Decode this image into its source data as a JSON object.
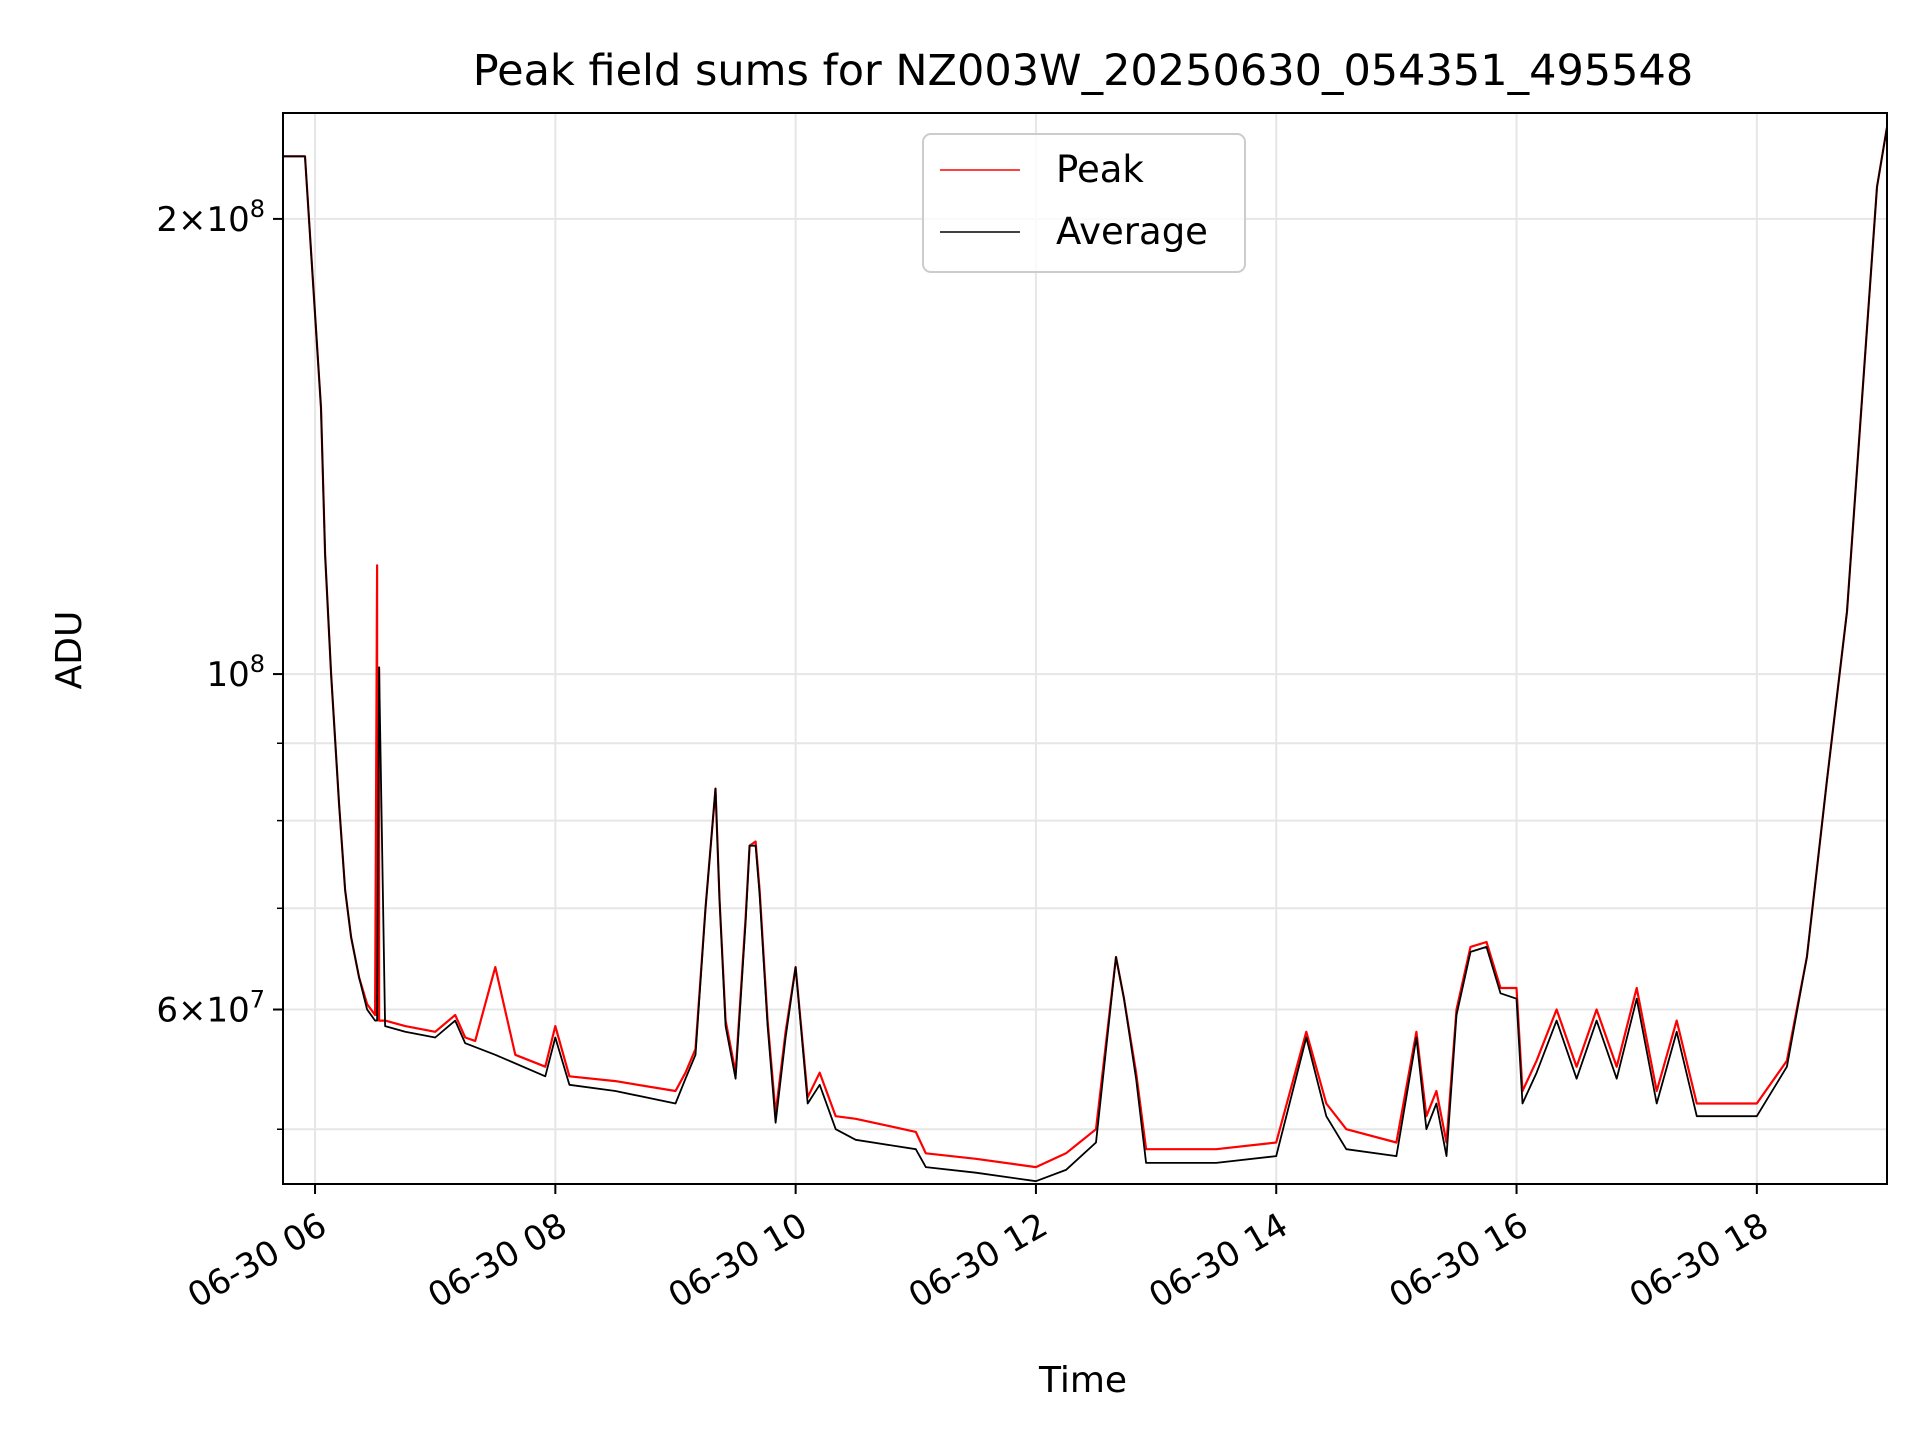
{
  "chart_data": {
    "type": "line",
    "title": "Peak field sums for NZ003W_20250630_054351_495548",
    "xlabel": "Time",
    "ylabel": "ADU",
    "yscale": "log",
    "grid": true,
    "legend_placement": "upper center",
    "xlim": [
      "2025-06-30 05:44",
      "2025-06-30 19:05"
    ],
    "ylim": [
      46000000,
      235000000
    ],
    "x_ticks": [
      "2025-06-30 06:00",
      "2025-06-30 08:00",
      "2025-06-30 10:00",
      "2025-06-30 12:00",
      "2025-06-30 14:00",
      "2025-06-30 16:00",
      "2025-06-30 18:00"
    ],
    "x_tick_labels": [
      "06-30 06",
      "06-30 08",
      "06-30 10",
      "06-30 12",
      "06-30 14",
      "06-30 16",
      "06-30 18"
    ],
    "y_major_ticks": [
      60000000,
      100000000,
      200000000
    ],
    "y_major_tick_labels": [
      {
        "mant": "6",
        "exp": "7"
      },
      {
        "mant": "",
        "exp": "8"
      },
      {
        "mant": "2",
        "exp": "8"
      }
    ],
    "y_minor_ticks": [
      50000000,
      70000000,
      80000000,
      90000000
    ],
    "series": [
      {
        "name": "Peak",
        "color": "#ff0000",
        "x": [
          "2025-06-30 05:44",
          "2025-06-30 05:55",
          "2025-06-30 06:03",
          "2025-06-30 06:05",
          "2025-06-30 06:08",
          "2025-06-30 06:12",
          "2025-06-30 06:15",
          "2025-06-30 06:18",
          "2025-06-30 06:22",
          "2025-06-30 06:26",
          "2025-06-30 06:30",
          "2025-06-30 06:31",
          "2025-06-30 06:31",
          "2025-06-30 06:32",
          "2025-06-30 06:32",
          "2025-06-30 06:35",
          "2025-06-30 06:45",
          "2025-06-30 07:00",
          "2025-06-30 07:10",
          "2025-06-30 07:15",
          "2025-06-30 07:20",
          "2025-06-30 07:30",
          "2025-06-30 07:40",
          "2025-06-30 07:55",
          "2025-06-30 08:00",
          "2025-06-30 08:07",
          "2025-06-30 08:30",
          "2025-06-30 09:00",
          "2025-06-30 09:05",
          "2025-06-30 09:10",
          "2025-06-30 09:15",
          "2025-06-30 09:20",
          "2025-06-30 09:22",
          "2025-06-30 09:25",
          "2025-06-30 09:30",
          "2025-06-30 09:35",
          "2025-06-30 09:37",
          "2025-06-30 09:40",
          "2025-06-30 09:42",
          "2025-06-30 09:46",
          "2025-06-30 09:50",
          "2025-06-30 09:55",
          "2025-06-30 10:00",
          "2025-06-30 10:06",
          "2025-06-30 10:12",
          "2025-06-30 10:20",
          "2025-06-30 10:30",
          "2025-06-30 11:00",
          "2025-06-30 11:05",
          "2025-06-30 11:30",
          "2025-06-30 12:00",
          "2025-06-30 12:15",
          "2025-06-30 12:30",
          "2025-06-30 12:40",
          "2025-06-30 12:44",
          "2025-06-30 12:50",
          "2025-06-30 12:55",
          "2025-06-30 13:00",
          "2025-06-30 13:30",
          "2025-06-30 14:00",
          "2025-06-30 14:15",
          "2025-06-30 14:25",
          "2025-06-30 14:35",
          "2025-06-30 15:00",
          "2025-06-30 15:10",
          "2025-06-30 15:15",
          "2025-06-30 15:20",
          "2025-06-30 15:25",
          "2025-06-30 15:30",
          "2025-06-30 15:37",
          "2025-06-30 15:45",
          "2025-06-30 15:52",
          "2025-06-30 16:00",
          "2025-06-30 16:03",
          "2025-06-30 16:10",
          "2025-06-30 16:20",
          "2025-06-30 16:30",
          "2025-06-30 16:40",
          "2025-06-30 16:50",
          "2025-06-30 17:00",
          "2025-06-30 17:10",
          "2025-06-30 17:20",
          "2025-06-30 17:30",
          "2025-06-30 17:45",
          "2025-06-30 18:00",
          "2025-06-30 18:15",
          "2025-06-30 18:25",
          "2025-06-30 18:35",
          "2025-06-30 18:45",
          "2025-06-30 19:00",
          "2025-06-30 19:05"
        ],
        "values": [
          220000000.0,
          220000000.0,
          150000000.0,
          120000000.0,
          100000000.0,
          82000000.0,
          72000000.0,
          67000000.0,
          63000000.0,
          60500000.0,
          59500000.0,
          118000000.0,
          59500000.0,
          101000000.0,
          59000000.0,
          59000000.0,
          58500000.0,
          58000000.0,
          59500000.0,
          57500000.0,
          57200000.0,
          64000000.0,
          56000000.0,
          55000000.0,
          58500000.0,
          54200000.0,
          53800000.0,
          53000000.0,
          54500000.0,
          56500000.0,
          70000000.0,
          84000000.0,
          71000000.0,
          59000000.0,
          54500000.0,
          69000000.0,
          77000000.0,
          77500000.0,
          72000000.0,
          59000000.0,
          51200000.0,
          58000000.0,
          64000000.0,
          52500000.0,
          54500000.0,
          51000000.0,
          50800000.0,
          49800000.0,
          48200000.0,
          47800000.0,
          47200000.0,
          48200000.0,
          50000000.0,
          65000000.0,
          61000000.0,
          54500000.0,
          48500000.0,
          48500000.0,
          48500000.0,
          49000000.0,
          58000000.0,
          52000000.0,
          50000000.0,
          49000000.0,
          58000000.0,
          51000000.0,
          53000000.0,
          49000000.0,
          60000000.0,
          66000000.0,
          66500000.0,
          62000000.0,
          62000000.0,
          53000000.0,
          55500000.0,
          60000000.0,
          55000000.0,
          60000000.0,
          55000000.0,
          62000000.0,
          53000000.0,
          59000000.0,
          52000000.0,
          52000000.0,
          52000000.0,
          55500000.0,
          65000000.0,
          85000000.0,
          110000000.0,
          210000000.0,
          230000000.0
        ]
      },
      {
        "name": "Average",
        "color": "#000000",
        "x": [
          "2025-06-30 05:44",
          "2025-06-30 05:55",
          "2025-06-30 06:03",
          "2025-06-30 06:05",
          "2025-06-30 06:08",
          "2025-06-30 06:12",
          "2025-06-30 06:15",
          "2025-06-30 06:18",
          "2025-06-30 06:22",
          "2025-06-30 06:26",
          "2025-06-30 06:30",
          "2025-06-30 06:31",
          "2025-06-30 06:31",
          "2025-06-30 06:32",
          "2025-06-30 06:35",
          "2025-06-30 06:45",
          "2025-06-30 07:00",
          "2025-06-30 07:10",
          "2025-06-30 07:15",
          "2025-06-30 07:30",
          "2025-06-30 07:55",
          "2025-06-30 08:00",
          "2025-06-30 08:07",
          "2025-06-30 08:30",
          "2025-06-30 09:00",
          "2025-06-30 09:05",
          "2025-06-30 09:10",
          "2025-06-30 09:15",
          "2025-06-30 09:20",
          "2025-06-30 09:22",
          "2025-06-30 09:25",
          "2025-06-30 09:30",
          "2025-06-30 09:35",
          "2025-06-30 09:37",
          "2025-06-30 09:40",
          "2025-06-30 09:42",
          "2025-06-30 09:46",
          "2025-06-30 09:50",
          "2025-06-30 09:55",
          "2025-06-30 10:00",
          "2025-06-30 10:06",
          "2025-06-30 10:12",
          "2025-06-30 10:20",
          "2025-06-30 10:30",
          "2025-06-30 11:00",
          "2025-06-30 11:05",
          "2025-06-30 11:30",
          "2025-06-30 12:00",
          "2025-06-30 12:15",
          "2025-06-30 12:30",
          "2025-06-30 12:40",
          "2025-06-30 12:44",
          "2025-06-30 12:50",
          "2025-06-30 12:55",
          "2025-06-30 13:00",
          "2025-06-30 13:30",
          "2025-06-30 14:00",
          "2025-06-30 14:15",
          "2025-06-30 14:25",
          "2025-06-30 14:35",
          "2025-06-30 15:00",
          "2025-06-30 15:10",
          "2025-06-30 15:15",
          "2025-06-30 15:20",
          "2025-06-30 15:25",
          "2025-06-30 15:30",
          "2025-06-30 15:37",
          "2025-06-30 15:45",
          "2025-06-30 15:52",
          "2025-06-30 16:00",
          "2025-06-30 16:03",
          "2025-06-30 16:10",
          "2025-06-30 16:20",
          "2025-06-30 16:30",
          "2025-06-30 16:40",
          "2025-06-30 16:50",
          "2025-06-30 17:00",
          "2025-06-30 17:10",
          "2025-06-30 17:20",
          "2025-06-30 17:30",
          "2025-06-30 17:45",
          "2025-06-30 18:00",
          "2025-06-30 18:15",
          "2025-06-30 18:25",
          "2025-06-30 18:35",
          "2025-06-30 18:45",
          "2025-06-30 19:00",
          "2025-06-30 19:05"
        ],
        "values": [
          220000000.0,
          220000000.0,
          150000000.0,
          120000000.0,
          100000000.0,
          82000000.0,
          72000000.0,
          67000000.0,
          63000000.0,
          60000000.0,
          59000000.0,
          59000000.0,
          59000000.0,
          101000000.0,
          58500000.0,
          58000000.0,
          57500000.0,
          59000000.0,
          57000000.0,
          56000000.0,
          54200000.0,
          57500000.0,
          53500000.0,
          53000000.0,
          52000000.0,
          54000000.0,
          56000000.0,
          70000000.0,
          84000000.0,
          71000000.0,
          58500000.0,
          54000000.0,
          68500000.0,
          77000000.0,
          77000000.0,
          71500000.0,
          58500000.0,
          50500000.0,
          57500000.0,
          64000000.0,
          52000000.0,
          53500000.0,
          50000000.0,
          49200000.0,
          48500000.0,
          47200000.0,
          46800000.0,
          46200000.0,
          47000000.0,
          49000000.0,
          65000000.0,
          61000000.0,
          54000000.0,
          47500000.0,
          47500000.0,
          47500000.0,
          48000000.0,
          57500000.0,
          51000000.0,
          48500000.0,
          48000000.0,
          57500000.0,
          50000000.0,
          52000000.0,
          48000000.0,
          59500000.0,
          65500000.0,
          66000000.0,
          61500000.0,
          61000000.0,
          52000000.0,
          54500000.0,
          59000000.0,
          54000000.0,
          59000000.0,
          54000000.0,
          61000000.0,
          52000000.0,
          58000000.0,
          51000000.0,
          51000000.0,
          51000000.0,
          55000000.0,
          65000000.0,
          85000000.0,
          110000000.0,
          210000000.0,
          230000000.0
        ]
      }
    ]
  }
}
